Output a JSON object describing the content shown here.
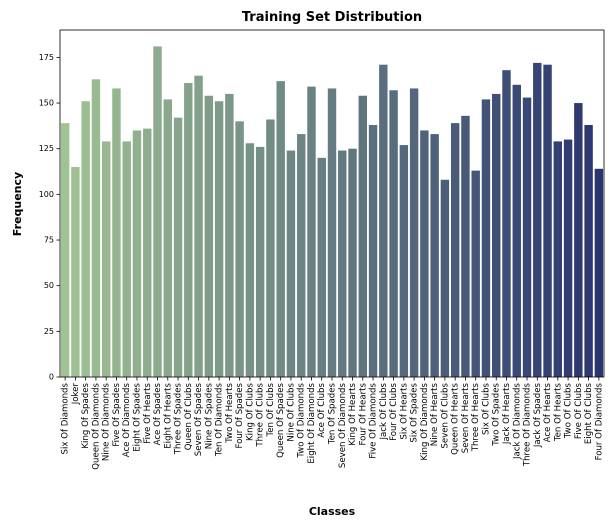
{
  "chart_data": {
    "type": "bar",
    "title": "Training Set Distribution",
    "xlabel": "Classes",
    "ylabel": "Frequency",
    "ylim": [
      0,
      190
    ],
    "yticks": [
      0,
      25,
      50,
      75,
      100,
      125,
      150,
      175
    ],
    "grid": false,
    "colormap": "crest",
    "color_start": "#a0c393",
    "color_end": "#2a3570",
    "categories": [
      "Six Of Diamonds",
      "Joker",
      "King Of Spades",
      "Queen Of Diamonds",
      "Nine Of Diamonds",
      "Five Of Spades",
      "Ace Of Diamonds",
      "Eight Of Spades",
      "Five Of Hearts",
      "Ace Of Spades",
      "Eight Of Hearts",
      "Three Of Spades",
      "Queen Of Clubs",
      "Seven Of Spades",
      "Nine Of Spades",
      "Ten Of Diamonds",
      "Two Of Hearts",
      "Four Of Spades",
      "King Of Clubs",
      "Three Of Clubs",
      "Ten Of Clubs",
      "Queen Of Spades",
      "Nine Of Clubs",
      "Two Of Diamonds",
      "Eight Of Diamonds",
      "Ace Of Clubs",
      "Ten Of Spades",
      "Seven Of Diamonds",
      "King Of Hearts",
      "Four Of Hearts",
      "Five Of Diamonds",
      "Jack Of Clubs",
      "Four Of Clubs",
      "Six Of Hearts",
      "Six Of Spades",
      "King Of Diamonds",
      "Nine Of Hearts",
      "Seven Of Clubs",
      "Queen Of Hearts",
      "Seven Of Hearts",
      "Three Of Hearts",
      "Six Of Clubs",
      "Two Of Spades",
      "Jack Of Hearts",
      "Jack Of Diamonds",
      "Three Of Diamonds",
      "Jack Of Spades",
      "Ace Of Hearts",
      "Ten Of Hearts",
      "Two Of Clubs",
      "Five Of Clubs",
      "Eight Of Clubs",
      "Four Of Diamonds"
    ],
    "values": [
      139,
      115,
      151,
      163,
      129,
      158,
      129,
      135,
      136,
      181,
      152,
      142,
      161,
      165,
      154,
      151,
      155,
      140,
      128,
      126,
      141,
      162,
      124,
      133,
      159,
      120,
      158,
      124,
      125,
      154,
      138,
      171,
      157,
      127,
      158,
      135,
      133,
      108,
      139,
      143,
      113,
      152,
      155,
      168,
      160,
      153,
      172,
      171,
      129,
      130,
      150,
      138,
      114
    ]
  }
}
